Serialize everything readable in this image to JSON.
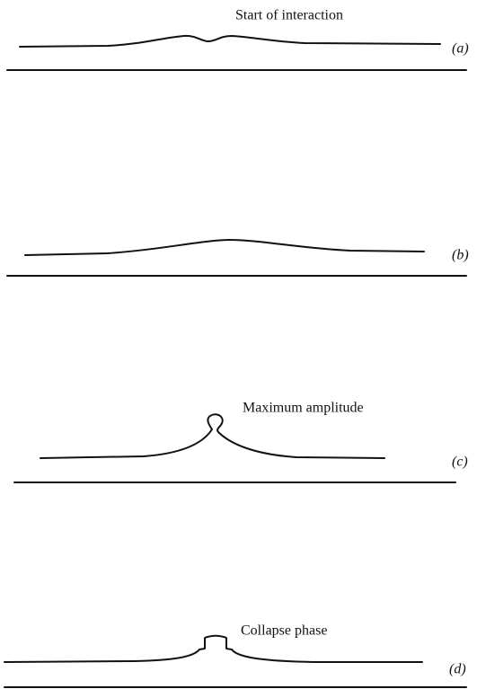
{
  "panels": [
    {
      "label": "(a)",
      "annotation": "Start of interaction"
    },
    {
      "label": "(b)"
    },
    {
      "label": "(c)",
      "annotation": "Maximum amplitude"
    },
    {
      "label": "(d)",
      "annotation": "Collapse phase"
    }
  ]
}
